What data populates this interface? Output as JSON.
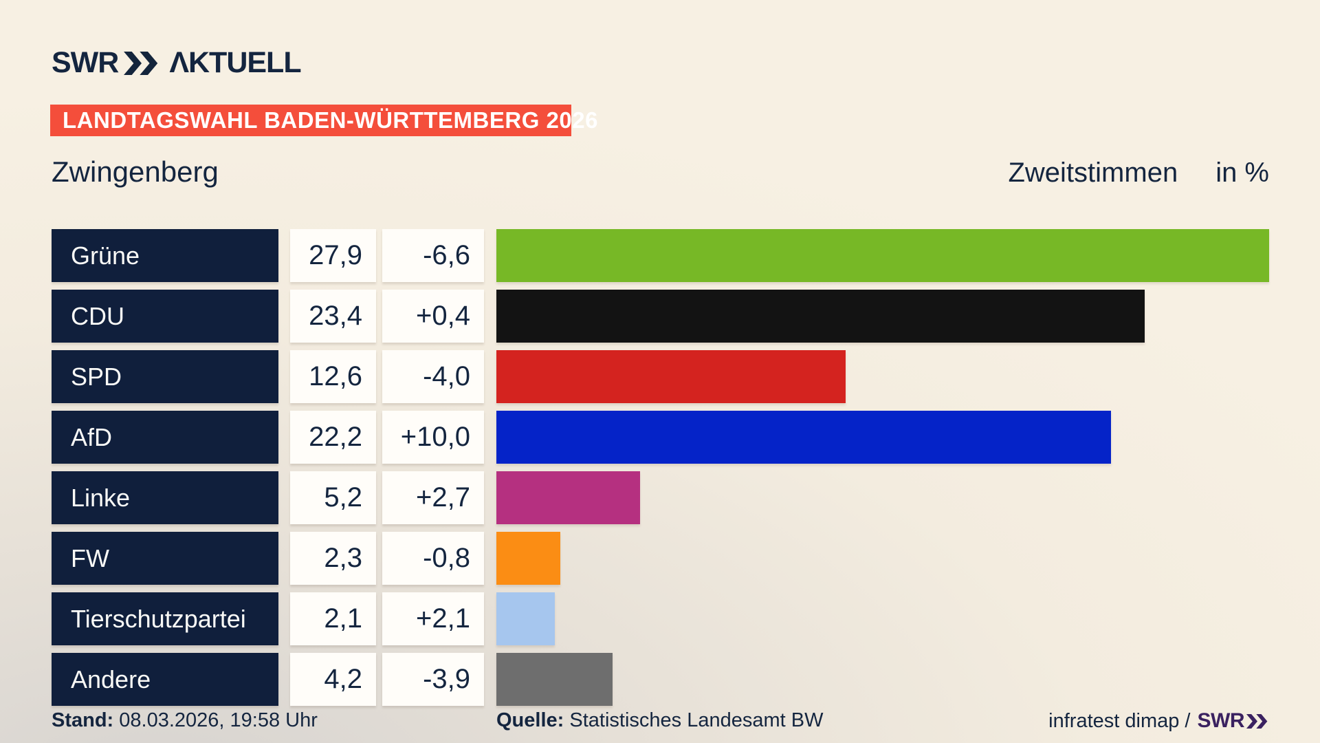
{
  "header": {
    "logo_brand": "SWR",
    "logo_suffix": "ΛKTUELL",
    "badge": "LANDTAGSWAHL BADEN-WÜRTTEMBERG 2026",
    "municipality": "Zwingenberg",
    "measure": "Zweitstimmen",
    "unit": "in %"
  },
  "chart_data": {
    "type": "bar",
    "orientation": "horizontal",
    "title": "Zwingenberg",
    "value_axis_label": "Zweitstimmen in %",
    "xlim": [
      0,
      27.9
    ],
    "categories": [
      "Grüne",
      "CDU",
      "SPD",
      "AfD",
      "Linke",
      "FW",
      "Tierschutzpartei",
      "Andere"
    ],
    "values": [
      27.9,
      23.4,
      12.6,
      22.2,
      5.2,
      2.3,
      2.1,
      4.2
    ],
    "changes": [
      -6.6,
      0.4,
      -4.0,
      10.0,
      2.7,
      -0.8,
      2.1,
      -3.9
    ],
    "rows": [
      {
        "party": "Grüne",
        "value": 27.9,
        "value_label": "27,9",
        "change_label": "-6,6",
        "color": "#77b826"
      },
      {
        "party": "CDU",
        "value": 23.4,
        "value_label": "23,4",
        "change_label": "+0,4",
        "color": "#131313"
      },
      {
        "party": "SPD",
        "value": 12.6,
        "value_label": "12,6",
        "change_label": "-4,0",
        "color": "#d4231f"
      },
      {
        "party": "AfD",
        "value": 22.2,
        "value_label": "22,2",
        "change_label": "+10,0",
        "color": "#0523c8"
      },
      {
        "party": "Linke",
        "value": 5.2,
        "value_label": "5,2",
        "change_label": "+2,7",
        "color": "#b53080"
      },
      {
        "party": "FW",
        "value": 2.3,
        "value_label": "2,3",
        "change_label": "-0,8",
        "color": "#fb8d14"
      },
      {
        "party": "Tierschutzpartei",
        "value": 2.1,
        "value_label": "2,1",
        "change_label": "+2,1",
        "color": "#a6c6ee"
      },
      {
        "party": "Andere",
        "value": 4.2,
        "value_label": "4,2",
        "change_label": "-3,9",
        "color": "#6e6e6e"
      }
    ]
  },
  "footer": {
    "stand_label": "Stand:",
    "stand_value": "08.03.2026, 19:58 Uhr",
    "quelle_label": "Quelle:",
    "quelle_value": "Statistisches Landesamt BW",
    "credit_text": "infratest dimap /",
    "credit_brand": "SWR"
  },
  "colors": {
    "background_top": "#f7f0e3",
    "background_corner": "#d6d3d0",
    "navy": "#14253f",
    "label_box": "#101f3c",
    "badge_red": "#f44e3b",
    "box_white": "#fffdf9",
    "credit_purple": "#3a2160"
  }
}
